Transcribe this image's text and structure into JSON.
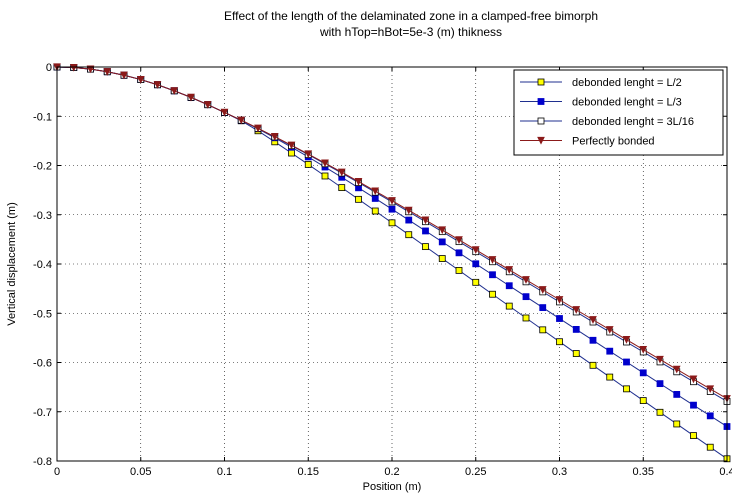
{
  "chart_data": {
    "type": "line",
    "title": [
      "Effect of the length of the delaminated zone in a clamped-free bimorph",
      "with hTop=hBot=5e-3 (m) thikness"
    ],
    "xlabel": "Position (m)",
    "ylabel": "Vertical displacement (m)",
    "xlim": [
      0,
      0.4
    ],
    "ylim": [
      -0.8,
      0
    ],
    "xticks": [
      0,
      0.05,
      0.1,
      0.15,
      0.2,
      0.25,
      0.3,
      0.35,
      0.4
    ],
    "xtick_labels": [
      "0",
      "0.05",
      "0.1",
      "0.15",
      "0.2",
      "0.25",
      "0.3",
      "0.35",
      "0.4"
    ],
    "yticks": [
      0,
      -0.1,
      -0.2,
      -0.3,
      -0.4,
      -0.5,
      -0.6,
      -0.7,
      -0.8
    ],
    "ytick_labels": [
      "0",
      "-0.1",
      "-0.2",
      "-0.3",
      "-0.4",
      "-0.5",
      "-0.6",
      "-0.7",
      "-0.8"
    ],
    "grid": true,
    "legend_position": "top-right",
    "x": [
      0,
      0.01,
      0.02,
      0.03,
      0.04,
      0.05,
      0.06,
      0.07,
      0.08,
      0.09,
      0.1,
      0.11,
      0.12,
      0.13,
      0.14,
      0.15,
      0.16,
      0.17,
      0.18,
      0.19,
      0.2,
      0.21,
      0.22,
      0.23,
      0.24,
      0.25,
      0.26,
      0.27,
      0.28,
      0.29,
      0.3,
      0.31,
      0.32,
      0.33,
      0.34,
      0.35,
      0.36,
      0.37,
      0.38,
      0.39,
      0.4
    ],
    "series": [
      {
        "name": "debonded lenght = L/2",
        "line_color": "#1f2f8f",
        "marker": "square",
        "marker_face": "#ffff00",
        "marker_edge": "#000000",
        "values": [
          0,
          -0.0011,
          -0.0043,
          -0.0096,
          -0.0167,
          -0.0255,
          -0.036,
          -0.0483,
          -0.0617,
          -0.0765,
          -0.0922,
          -0.1092,
          -0.1295,
          -0.1519,
          -0.1747,
          -0.1979,
          -0.2213,
          -0.2449,
          -0.2687,
          -0.2924,
          -0.3164,
          -0.3405,
          -0.3647,
          -0.3889,
          -0.413,
          -0.4372,
          -0.4614,
          -0.4855,
          -0.5096,
          -0.5337,
          -0.5578,
          -0.5818,
          -0.6057,
          -0.6296,
          -0.6535,
          -0.6773,
          -0.7011,
          -0.7248,
          -0.7484,
          -0.772,
          -0.7955
        ]
      },
      {
        "name": "debonded lenght = L/3",
        "line_color": "#1f2f8f",
        "marker": "square",
        "marker_face": "#0000cc",
        "marker_edge": "#0000cc",
        "values": [
          0,
          -0.0011,
          -0.0043,
          -0.0096,
          -0.0167,
          -0.0255,
          -0.036,
          -0.0483,
          -0.0617,
          -0.0765,
          -0.0922,
          -0.1082,
          -0.1254,
          -0.1437,
          -0.1629,
          -0.1826,
          -0.2031,
          -0.2239,
          -0.2453,
          -0.2669,
          -0.2887,
          -0.3108,
          -0.3329,
          -0.3551,
          -0.3773,
          -0.3996,
          -0.4218,
          -0.4441,
          -0.4663,
          -0.4885,
          -0.5107,
          -0.5328,
          -0.5549,
          -0.577,
          -0.599,
          -0.621,
          -0.6429,
          -0.6648,
          -0.6866,
          -0.7083,
          -0.73
        ]
      },
      {
        "name": "debonded lenght = 3L/16",
        "line_color": "#1f2f8f",
        "marker": "square",
        "marker_face": "#ffffff",
        "marker_edge": "#000000",
        "values": [
          0,
          -0.0011,
          -0.0043,
          -0.0096,
          -0.0167,
          -0.0255,
          -0.036,
          -0.0483,
          -0.0617,
          -0.0765,
          -0.0922,
          -0.1082,
          -0.1248,
          -0.142,
          -0.1597,
          -0.1779,
          -0.1965,
          -0.2154,
          -0.2347,
          -0.2542,
          -0.274,
          -0.294,
          -0.3141,
          -0.3343,
          -0.3546,
          -0.375,
          -0.3954,
          -0.4158,
          -0.4362,
          -0.4566,
          -0.477,
          -0.4974,
          -0.5178,
          -0.5381,
          -0.5584,
          -0.5786,
          -0.5988,
          -0.6189,
          -0.639,
          -0.659,
          -0.679
        ]
      },
      {
        "name": "Perfectly bonded",
        "line_color": "#8b1a1a",
        "marker": "triangle-down",
        "marker_face": "#8b1a1a",
        "marker_edge": "#8b1a1a",
        "values": [
          0,
          -0.0011,
          -0.0043,
          -0.0096,
          -0.0167,
          -0.0255,
          -0.036,
          -0.0483,
          -0.0617,
          -0.0765,
          -0.0922,
          -0.108,
          -0.1244,
          -0.1414,
          -0.1588,
          -0.1767,
          -0.195,
          -0.2137,
          -0.2327,
          -0.2519,
          -0.2714,
          -0.2911,
          -0.3109,
          -0.3309,
          -0.351,
          -0.3712,
          -0.3914,
          -0.4117,
          -0.432,
          -0.4523,
          -0.4726,
          -0.4929,
          -0.5132,
          -0.5334,
          -0.5536,
          -0.5737,
          -0.5938,
          -0.6138,
          -0.6338,
          -0.6537,
          -0.6735
        ]
      }
    ]
  }
}
